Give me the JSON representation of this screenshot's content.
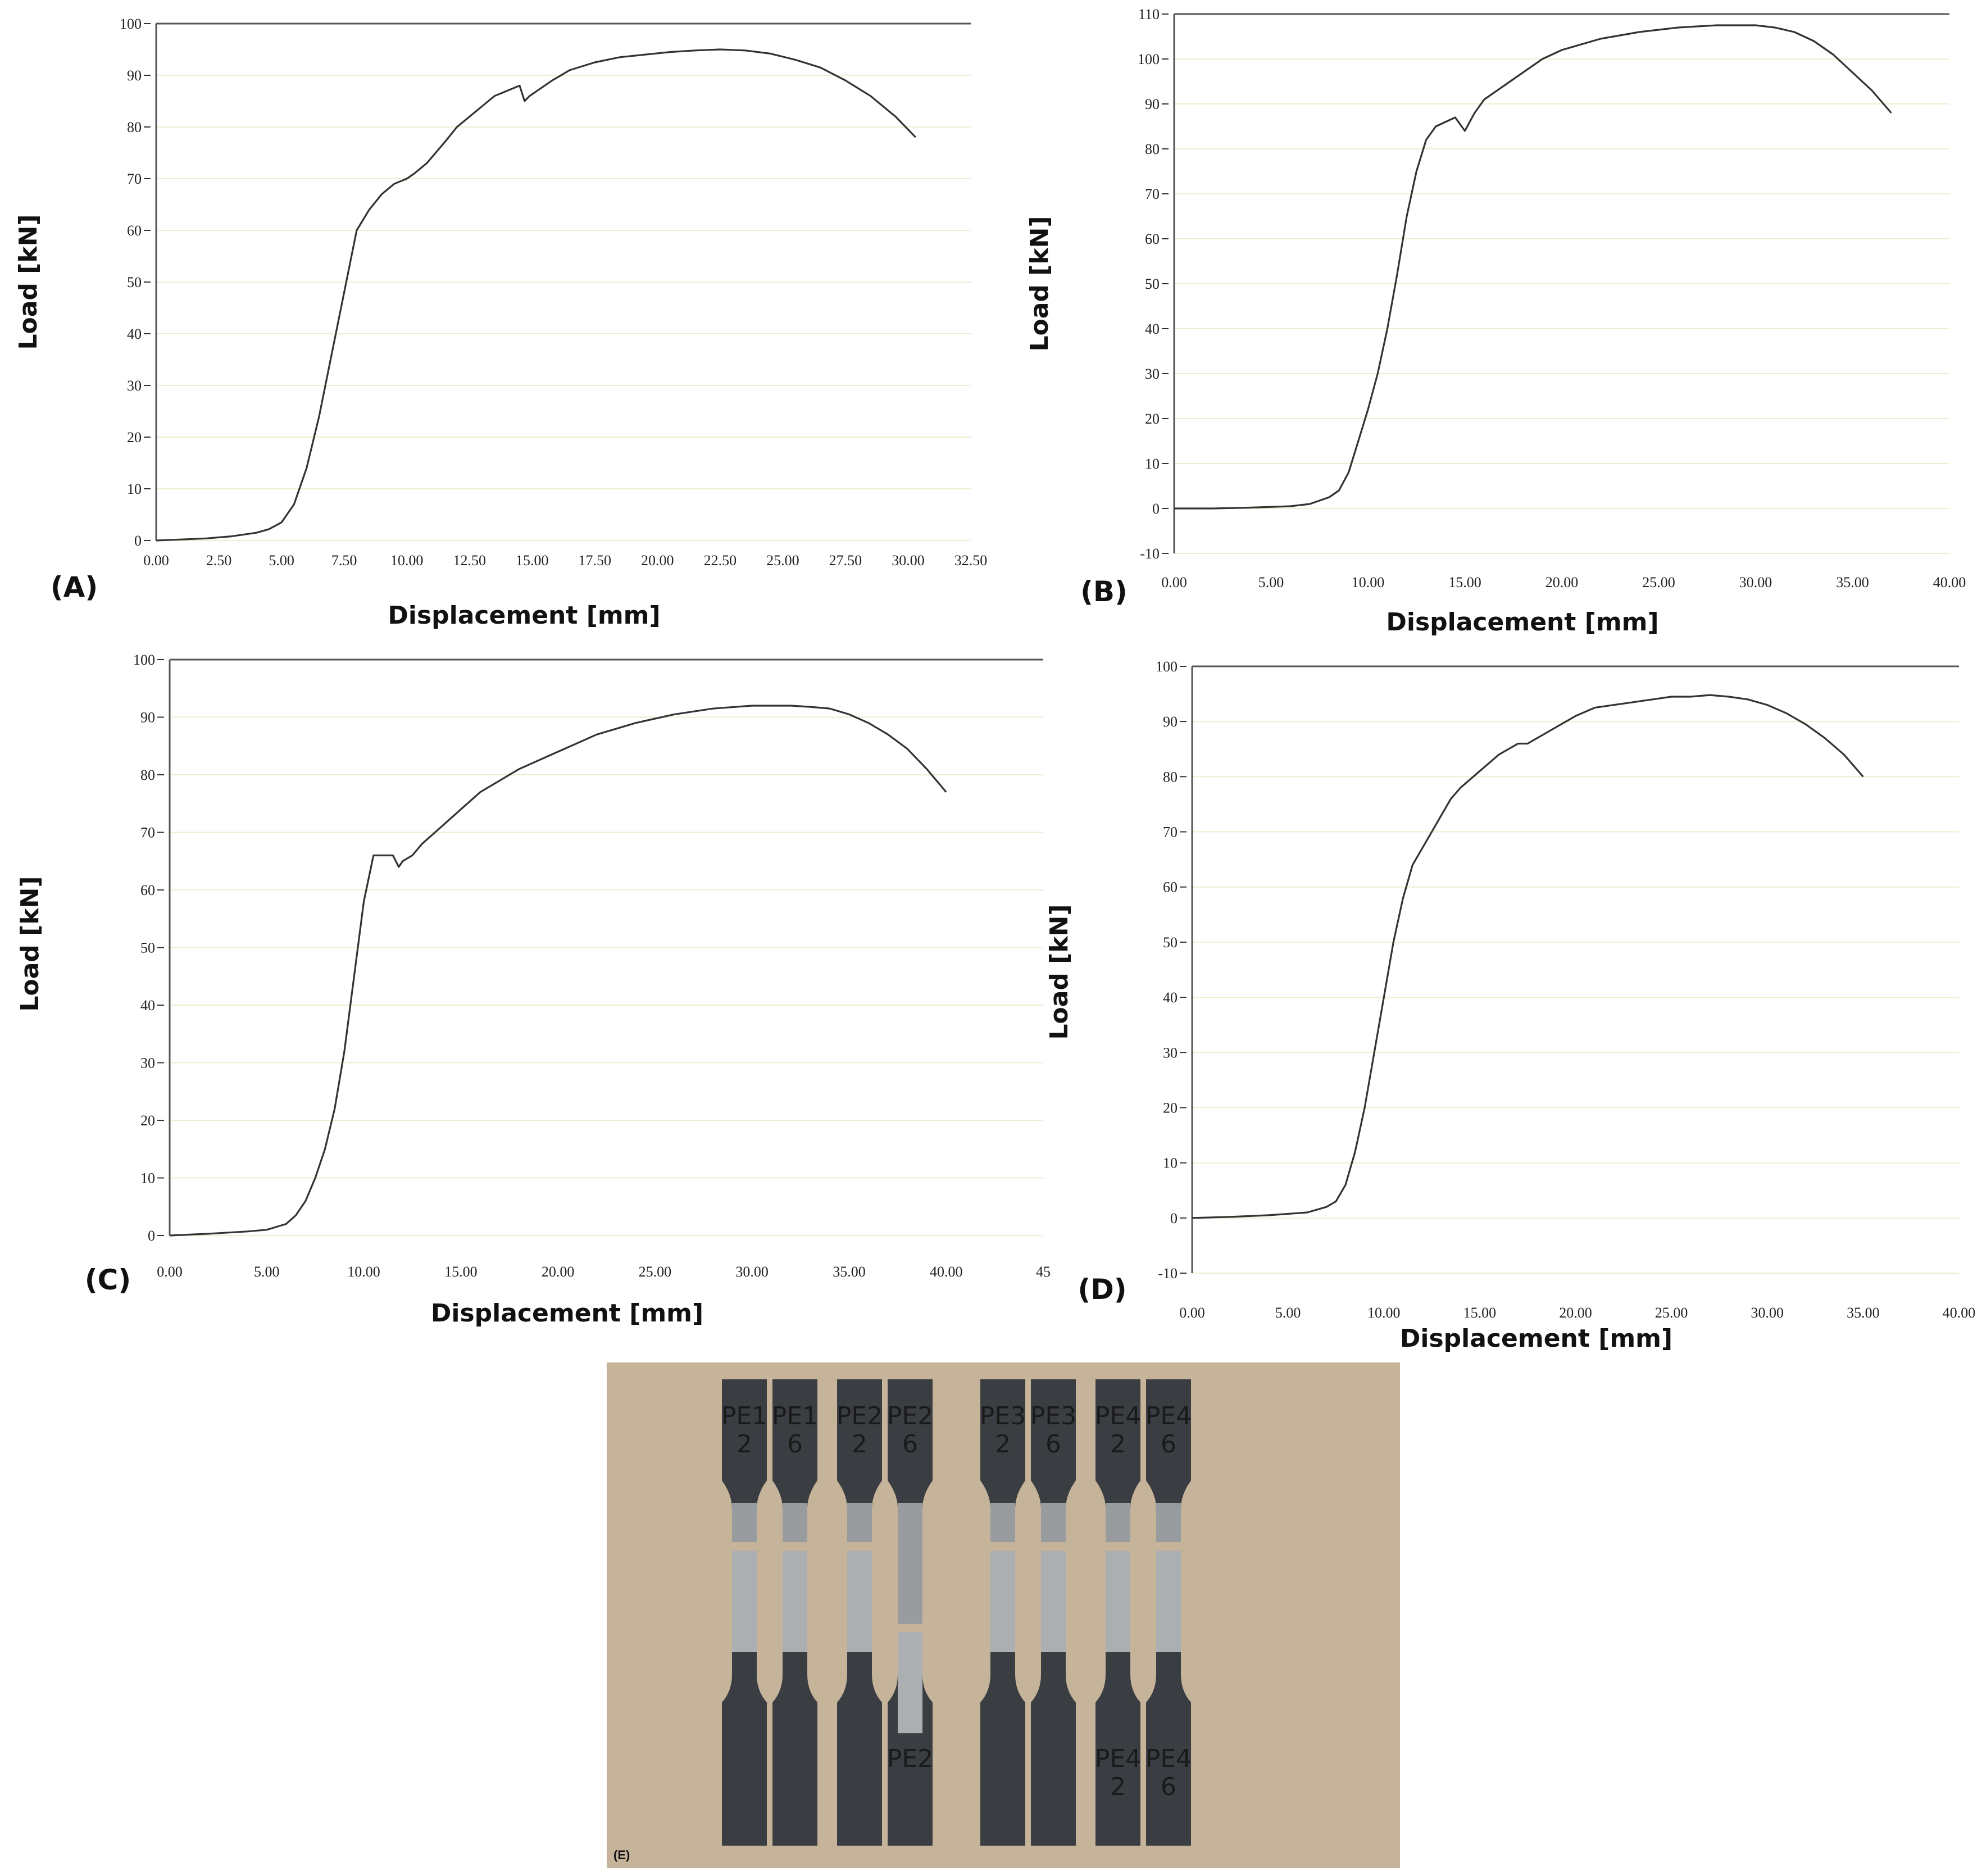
{
  "chart_data": [
    {
      "type": "line",
      "panel_label": "(A)",
      "xlabel": "Displacement [mm]",
      "ylabel": "Load [kN]",
      "xlim": [
        0,
        32.5
      ],
      "ylim": [
        0,
        100
      ],
      "xticks": [
        "0.00",
        "2.50",
        "5.00",
        "7.50",
        "10.00",
        "12.50",
        "15.00",
        "17.50",
        "20.00",
        "22.50",
        "25.00",
        "27.50",
        "30.00",
        "32.50"
      ],
      "yticks": [
        "0",
        "10",
        "20",
        "30",
        "40",
        "50",
        "60",
        "70",
        "80",
        "90",
        "100"
      ],
      "series": [
        {
          "x": [
            0,
            1,
            2,
            3,
            4,
            4.5,
            5,
            5.5,
            6,
            6.5,
            7,
            7.5,
            8,
            8.5,
            9,
            9.5,
            10,
            10.3,
            10.8,
            11.5,
            12,
            12.5,
            13,
            13.5,
            14,
            14.5,
            14.7,
            14.9,
            15.2,
            15.8,
            16.5,
            17.5,
            18.5,
            19.5,
            20.5,
            21.5,
            22.5,
            23.5,
            24.5,
            25.5,
            26.5,
            27.5,
            28.5,
            29.5,
            30.3
          ],
          "y": [
            0,
            0.2,
            0.4,
            0.8,
            1.5,
            2.2,
            3.5,
            7,
            14,
            24,
            36,
            48,
            60,
            64,
            67,
            69,
            70,
            71,
            73,
            77,
            80,
            82,
            84,
            86,
            87,
            88,
            85,
            86,
            87,
            89,
            91,
            92.5,
            93.5,
            94,
            94.5,
            94.8,
            95,
            94.8,
            94.2,
            93,
            91.5,
            89,
            86,
            82,
            78
          ]
        }
      ]
    },
    {
      "type": "line",
      "panel_label": "(B)",
      "xlabel": "Displacement [mm]",
      "ylabel": "Load [kN]",
      "xlim": [
        0,
        40
      ],
      "ylim": [
        -10,
        110
      ],
      "xticks": [
        "0.00",
        "5.00",
        "10.00",
        "15.00",
        "20.00",
        "25.00",
        "30.00",
        "35.00",
        "40.00"
      ],
      "yticks": [
        "-10",
        "0",
        "10",
        "20",
        "30",
        "40",
        "50",
        "60",
        "70",
        "80",
        "90",
        "100",
        "110"
      ],
      "series": [
        {
          "x": [
            0,
            2,
            4,
            6,
            7,
            8,
            8.5,
            9,
            9.5,
            10,
            10.5,
            11,
            11.5,
            12,
            12.5,
            13,
            13.5,
            14,
            14.5,
            15,
            15.5,
            16,
            17,
            18,
            19,
            20,
            22,
            24,
            26,
            28,
            29,
            30,
            31,
            32,
            33,
            34,
            35,
            36,
            37
          ],
          "y": [
            0,
            0,
            0.2,
            0.5,
            1,
            2.5,
            4,
            8,
            15,
            22,
            30,
            40,
            52,
            65,
            75,
            82,
            85,
            86,
            87,
            84,
            88,
            91,
            94,
            97,
            100,
            102,
            104.5,
            106,
            107,
            107.5,
            107.5,
            107.5,
            107,
            106,
            104,
            101,
            97,
            93,
            88
          ]
        }
      ]
    },
    {
      "type": "line",
      "panel_label": "(C)",
      "xlabel": "Displacement [mm]",
      "ylabel": "Load [kN]",
      "xlim": [
        0,
        45
      ],
      "ylim": [
        0,
        100
      ],
      "xticks": [
        "0.00",
        "5.00",
        "10.00",
        "15.00",
        "20.00",
        "25.00",
        "30.00",
        "35.00",
        "40.00",
        "45"
      ],
      "yticks": [
        "0",
        "10",
        "20",
        "30",
        "40",
        "50",
        "60",
        "70",
        "80",
        "90",
        "100"
      ],
      "series": [
        {
          "x": [
            0,
            2,
            4,
            5,
            5.5,
            6,
            6.5,
            7,
            7.5,
            8,
            8.5,
            9,
            9.5,
            10,
            10.5,
            11,
            11.5,
            11.8,
            12,
            12.5,
            13,
            14,
            15,
            16,
            18,
            20,
            22,
            24,
            26,
            28,
            30,
            32,
            33,
            34,
            35,
            36,
            37,
            38,
            39,
            40
          ],
          "y": [
            0,
            0.3,
            0.7,
            1,
            1.5,
            2,
            3.5,
            6,
            10,
            15,
            22,
            32,
            45,
            58,
            66,
            66,
            66,
            64,
            65,
            66,
            68,
            71,
            74,
            77,
            81,
            84,
            87,
            89,
            90.5,
            91.5,
            92,
            92,
            91.8,
            91.5,
            90.5,
            89,
            87,
            84.5,
            81,
            77
          ]
        }
      ]
    },
    {
      "type": "line",
      "panel_label": "(D)",
      "xlabel": "Displacement [mm]",
      "ylabel": "Load [kN]",
      "xlim": [
        0,
        40
      ],
      "ylim": [
        -10,
        100
      ],
      "xticks": [
        "0.00",
        "5.00",
        "10.00",
        "15.00",
        "20.00",
        "25.00",
        "30.00",
        "35.00",
        "40.00"
      ],
      "yticks": [
        "-10",
        "0",
        "10",
        "20",
        "30",
        "40",
        "50",
        "60",
        "70",
        "80",
        "90",
        "100"
      ],
      "series": [
        {
          "x": [
            0,
            2,
            4,
            6,
            7,
            7.5,
            8,
            8.5,
            9,
            9.5,
            10,
            10.5,
            11,
            11.5,
            12,
            12.5,
            13,
            13.5,
            14,
            15,
            16,
            17,
            17.5,
            18,
            19,
            20,
            21,
            22,
            23,
            24,
            25,
            26,
            27,
            28,
            29,
            30,
            31,
            32,
            33,
            34,
            35
          ],
          "y": [
            0,
            0.2,
            0.5,
            1,
            2,
            3,
            6,
            12,
            20,
            30,
            40,
            50,
            58,
            64,
            67,
            70,
            73,
            76,
            78,
            81,
            84,
            86,
            86,
            87,
            89,
            91,
            92.5,
            93,
            93.5,
            94,
            94.5,
            94.5,
            94.8,
            94.5,
            94,
            93,
            91.5,
            89.5,
            87,
            84,
            80
          ]
        }
      ]
    }
  ],
  "photo": {
    "label": "(E)",
    "background_color": "#c6b49a",
    "specimen_color": "#3a3d41",
    "marks_top": [
      "PE1 2",
      "PE1 6",
      "PE2 2",
      "PE2 6",
      "PE3 2",
      "PE3 6",
      "PE4 2",
      "PE4 6"
    ],
    "marks_bottom": [
      "PE2",
      "PE4 2",
      "PE4 6"
    ]
  }
}
